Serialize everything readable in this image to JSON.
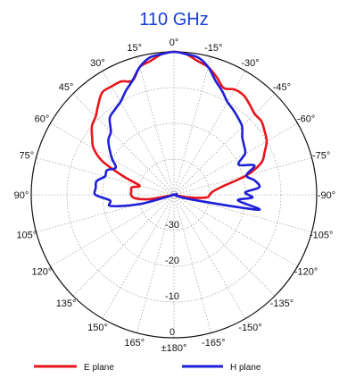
{
  "chart_data": {
    "type": "polar-line",
    "title": "110 GHz",
    "r_ticks": [
      -30,
      -20,
      -10,
      0
    ],
    "r_tick_labels": [
      "-30",
      "-20",
      "-10",
      "0"
    ],
    "theta_ticks": [
      0,
      -15,
      -30,
      -45,
      -60,
      -75,
      -90,
      -105,
      -120,
      -135,
      -150,
      -165,
      180,
      165,
      150,
      135,
      120,
      105,
      90,
      75,
      60,
      45,
      30,
      15
    ],
    "theta_tick_labels": [
      "0°",
      "-15°",
      "-30°",
      "-45°",
      "-60°",
      "-75°",
      "-90°",
      "-105°",
      "-120°",
      "-135°",
      "-150°",
      "-165°",
      "±180°",
      "165°",
      "150°",
      "135°",
      "120°",
      "105°",
      "90°",
      "75°",
      "60°",
      "45°",
      "30°",
      "15°"
    ],
    "rlim": [
      -40,
      0
    ],
    "grid": true,
    "legend_position": "bottom",
    "colors": {
      "title": "#1a3fd6",
      "e_plane": "#e8141b",
      "h_plane": "#1f1fd8",
      "grid": "#888888"
    },
    "series": [
      {
        "name": "E plane",
        "color": "#e8141b",
        "theta": [
          -110,
          -100,
          -95,
          -90,
          -85,
          -80,
          -75,
          -70,
          -65,
          -60,
          -55,
          -50,
          -45,
          -40,
          -35,
          -30,
          -25,
          -20,
          -15,
          -10,
          -5,
          0,
          5,
          10,
          15,
          20,
          25,
          30,
          35,
          40,
          45,
          50,
          55,
          60,
          65,
          70,
          75,
          80,
          85,
          90,
          95,
          100,
          110
        ],
        "r": [
          -40,
          -36,
          -31,
          -30,
          -29,
          -26,
          -19,
          -14,
          -12,
          -10,
          -9,
          -8,
          -8,
          -7,
          -6,
          -6,
          -7,
          -5,
          -3,
          -2,
          -0.5,
          0,
          -0.5,
          -2,
          -3,
          -6,
          -5,
          -5,
          -5,
          -7,
          -9,
          -10,
          -12,
          -14,
          -18,
          -25,
          -30,
          -28,
          -28,
          -28,
          -29,
          -33,
          -40
        ]
      },
      {
        "name": "H plane",
        "color": "#1f1fd8",
        "theta": [
          -110,
          -105,
          -100,
          -95,
          -92,
          -88,
          -85,
          -80,
          -75,
          -70,
          -65,
          -60,
          -55,
          -50,
          -45,
          -40,
          -35,
          -30,
          -25,
          -20,
          -15,
          -10,
          -5,
          0,
          5,
          10,
          15,
          20,
          25,
          30,
          35,
          40,
          45,
          50,
          55,
          60,
          65,
          70,
          75,
          80,
          85,
          90,
          95,
          100,
          105,
          110
        ],
        "r": [
          -40,
          -35,
          -16,
          -22,
          -18,
          -20,
          -16,
          -17,
          -19,
          -16,
          -20,
          -17,
          -16,
          -15,
          -13,
          -12,
          -11,
          -10,
          -8,
          -6,
          -3,
          -1,
          -0.5,
          0,
          -0.5,
          -1,
          -3,
          -6,
          -8,
          -10,
          -11,
          -12,
          -15,
          -16,
          -18,
          -20,
          -22,
          -20,
          -20,
          -18,
          -18,
          -18,
          -22,
          -22,
          -30,
          -40
        ]
      }
    ]
  },
  "legend": {
    "e_plane_label": "E plane",
    "h_plane_label": "H plane"
  }
}
